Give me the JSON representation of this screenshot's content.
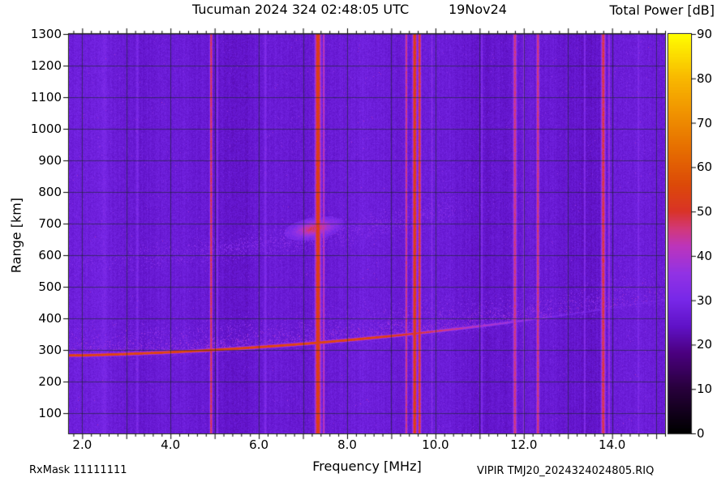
{
  "header": {
    "title": "Tucuman 2024 324 02:48:05 UTC",
    "date": "19Nov24",
    "colorbar_title": "Total Power [dB]"
  },
  "axes": {
    "xlabel": "Frequency [MHz]",
    "ylabel": "Range [km]"
  },
  "footer": {
    "rxmask": "RxMask 11111111",
    "filename": "VIPIR  TMJ20_2024324024805.RIQ"
  },
  "chart_data": {
    "type": "heatmap",
    "title": "Tucuman 2024 324 02:48:05 UTC 19Nov24",
    "station": "Tucuman",
    "year": 2024,
    "day_of_year": 324,
    "time_utc": "02:48:05",
    "date": "19Nov24",
    "xlabel": "Frequency [MHz]",
    "ylabel": "Range [km]",
    "colorbar_label": "Total Power [dB]",
    "x_range_mhz": [
      1.7,
      15.2
    ],
    "y_range_km": [
      36,
      1300
    ],
    "color_range_db": [
      0,
      90
    ],
    "background_noise_db": 27,
    "x_ticks": {
      "values": [
        2,
        4,
        6,
        8,
        10,
        12,
        14
      ],
      "labels": [
        "2.0",
        "4.0",
        "6.0",
        "8.0",
        "10.0",
        "12.0",
        "14.0"
      ]
    },
    "y_ticks": {
      "values": [
        100,
        200,
        300,
        400,
        500,
        600,
        700,
        800,
        900,
        1000,
        1100,
        1200,
        1300
      ],
      "labels": [
        "100",
        "200",
        "300",
        "400",
        "500",
        "600",
        "700",
        "800",
        "900",
        "1000",
        "1100",
        "1200",
        "1300"
      ]
    },
    "colorbar_ticks": {
      "values": [
        0,
        10,
        20,
        30,
        40,
        50,
        60,
        70,
        80,
        90
      ],
      "labels": [
        "0",
        "10",
        "20",
        "30",
        "40",
        "50",
        "60",
        "70",
        "80",
        "90"
      ]
    },
    "x_grid_mhz": [
      2,
      3,
      4,
      5,
      6,
      7,
      8,
      9,
      10,
      11,
      12,
      13,
      14,
      15
    ],
    "y_grid_km": [
      100,
      200,
      300,
      400,
      500,
      600,
      700,
      800,
      900,
      1000,
      1100,
      1200,
      1300
    ],
    "colormap_stops": [
      [
        0,
        "#000000"
      ],
      [
        10,
        "#28003c"
      ],
      [
        18,
        "#4b0080"
      ],
      [
        24,
        "#6012c8"
      ],
      [
        30,
        "#7828e8"
      ],
      [
        36,
        "#9232e4"
      ],
      [
        42,
        "#bc34bc"
      ],
      [
        46,
        "#d23878"
      ],
      [
        50,
        "#d93326"
      ],
      [
        56,
        "#dc4a08"
      ],
      [
        64,
        "#e66e00"
      ],
      [
        72,
        "#f09200"
      ],
      [
        80,
        "#f8b800"
      ],
      [
        90,
        "#ffff00"
      ]
    ],
    "rfi_lines": [
      {
        "f_mhz": 2.5,
        "halfwidth_mhz": 0.18,
        "power_db": 30
      },
      {
        "f_mhz": 3.25,
        "halfwidth_mhz": 0.06,
        "power_db": 31
      },
      {
        "f_mhz": 4.92,
        "halfwidth_mhz": 0.035,
        "power_db": 49
      },
      {
        "f_mhz": 5.06,
        "halfwidth_mhz": 0.03,
        "power_db": 34
      },
      {
        "f_mhz": 6.15,
        "halfwidth_mhz": 0.05,
        "power_db": 32
      },
      {
        "f_mhz": 7.34,
        "halfwidth_mhz": 0.075,
        "power_db": 54
      },
      {
        "f_mhz": 7.47,
        "halfwidth_mhz": 0.03,
        "power_db": 44
      },
      {
        "f_mhz": 9.34,
        "halfwidth_mhz": 0.03,
        "power_db": 47
      },
      {
        "f_mhz": 9.53,
        "halfwidth_mhz": 0.055,
        "power_db": 54
      },
      {
        "f_mhz": 9.64,
        "halfwidth_mhz": 0.04,
        "power_db": 52
      },
      {
        "f_mhz": 9.92,
        "halfwidth_mhz": 0.03,
        "power_db": 34
      },
      {
        "f_mhz": 11.05,
        "halfwidth_mhz": 0.03,
        "power_db": 33
      },
      {
        "f_mhz": 11.8,
        "halfwidth_mhz": 0.05,
        "power_db": 46
      },
      {
        "f_mhz": 12.0,
        "halfwidth_mhz": 0.03,
        "power_db": 35
      },
      {
        "f_mhz": 12.32,
        "halfwidth_mhz": 0.04,
        "power_db": 47
      },
      {
        "f_mhz": 13.38,
        "halfwidth_mhz": 0.03,
        "power_db": 33
      },
      {
        "f_mhz": 13.8,
        "halfwidth_mhz": 0.055,
        "power_db": 49
      },
      {
        "f_mhz": 13.93,
        "halfwidth_mhz": 0.025,
        "power_db": 39
      },
      {
        "f_mhz": 14.6,
        "halfwidth_mhz": 0.04,
        "power_db": 32
      }
    ],
    "dim_bands": [
      {
        "f_mhz": 10.8,
        "halfwidth_mhz": 0.3,
        "delta_db": -1.6
      },
      {
        "f_mhz": 13.5,
        "halfwidth_mhz": 0.22,
        "delta_db": -1.3
      },
      {
        "f_mhz": 5.65,
        "halfwidth_mhz": 0.18,
        "delta_db": -1.2
      }
    ],
    "echo_trace": {
      "description": "F-region echo trace rising from ~283 km at 2 MHz to ~430 km at 14 MHz with diffuse spread above",
      "base_km": 283,
      "lin_km_per_mhz": 3.5,
      "quad_km_per_mhz2": 0.75,
      "peak_power_db": 57,
      "fade_start_mhz": 8.5
    },
    "spread_above_trace_km": 130,
    "second_hop": {
      "description": "Diffuse second-hop echo near twice the trace range, strongest near 7 MHz / ~680 km",
      "center_mhz": 7.1,
      "peak_power_db": 46
    }
  }
}
